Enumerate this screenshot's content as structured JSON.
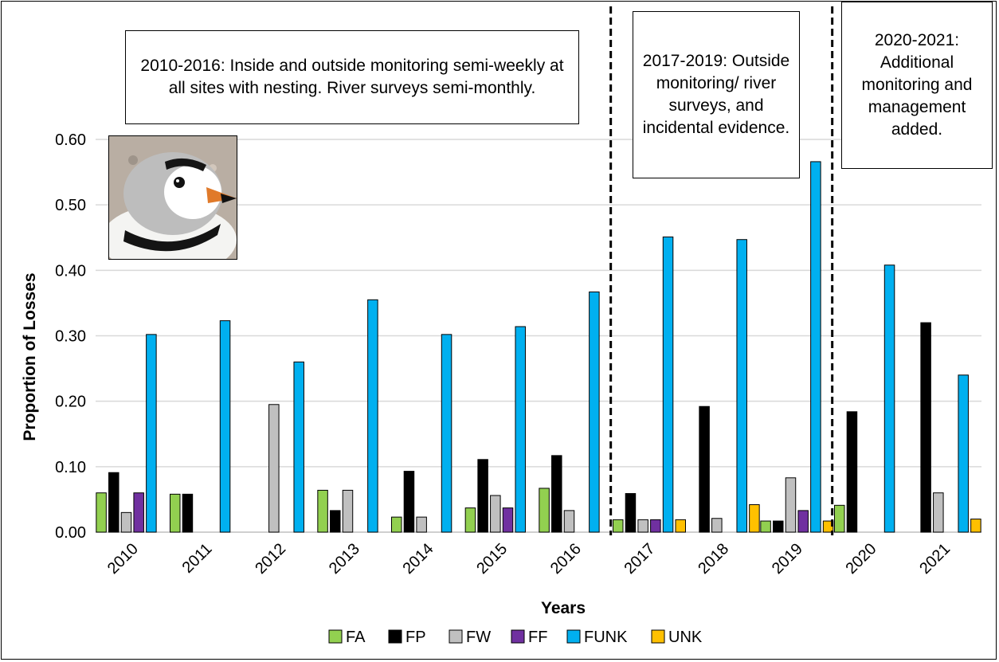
{
  "chart_data": {
    "type": "bar",
    "categories": [
      "2010",
      "2011",
      "2012",
      "2013",
      "2014",
      "2015",
      "2016",
      "2017",
      "2018",
      "2019",
      "2020",
      "2021"
    ],
    "series": [
      {
        "name": "FA",
        "color": "#92d050",
        "values": [
          0.06,
          0.058,
          0,
          0.064,
          0.023,
          0.037,
          0.067,
          0.019,
          0,
          0.017,
          0.041,
          0
        ]
      },
      {
        "name": "FP",
        "color": "#000000",
        "values": [
          0.091,
          0.058,
          0,
          0.033,
          0.093,
          0.111,
          0.117,
          0.059,
          0.192,
          0.017,
          0.184,
          0.32
        ]
      },
      {
        "name": "FW",
        "color": "#c0c0c0",
        "values": [
          0.03,
          0,
          0.195,
          0.064,
          0.023,
          0.056,
          0.033,
          0.019,
          0.021,
          0.083,
          0,
          0.06
        ]
      },
      {
        "name": "FF",
        "color": "#7030a0",
        "values": [
          0.06,
          0,
          0,
          0,
          0,
          0.037,
          0,
          0.019,
          0,
          0.033,
          0,
          0
        ]
      },
      {
        "name": "FUNK",
        "color": "#00b0f0",
        "values": [
          0.302,
          0.323,
          0.26,
          0.355,
          0.302,
          0.314,
          0.367,
          0.451,
          0.447,
          0.566,
          0.408,
          0.24
        ]
      },
      {
        "name": "UNK",
        "color": "#ffc000",
        "values": [
          0,
          0,
          0,
          0,
          0,
          0,
          0,
          0.019,
          0.042,
          0.017,
          0,
          0.02
        ]
      }
    ],
    "xlabel": "Years",
    "ylabel": "Proportion of Losses",
    "ylim": [
      0,
      0.6
    ],
    "yticks": [
      "0.00",
      "0.10",
      "0.20",
      "0.30",
      "0.40",
      "0.50",
      "0.60"
    ],
    "grid": true,
    "legend_position": "bottom",
    "annotations": [
      "2010-2016: Inside and outside monitoring semi-weekly at all sites with nesting. River surveys semi-monthly.",
      "2017-2019: Outside monitoring/ river surveys, and incidental evidence.",
      "2020-2021: Additional monitoring and management added."
    ]
  },
  "photo": {
    "icon": "piping-plover-photo"
  }
}
